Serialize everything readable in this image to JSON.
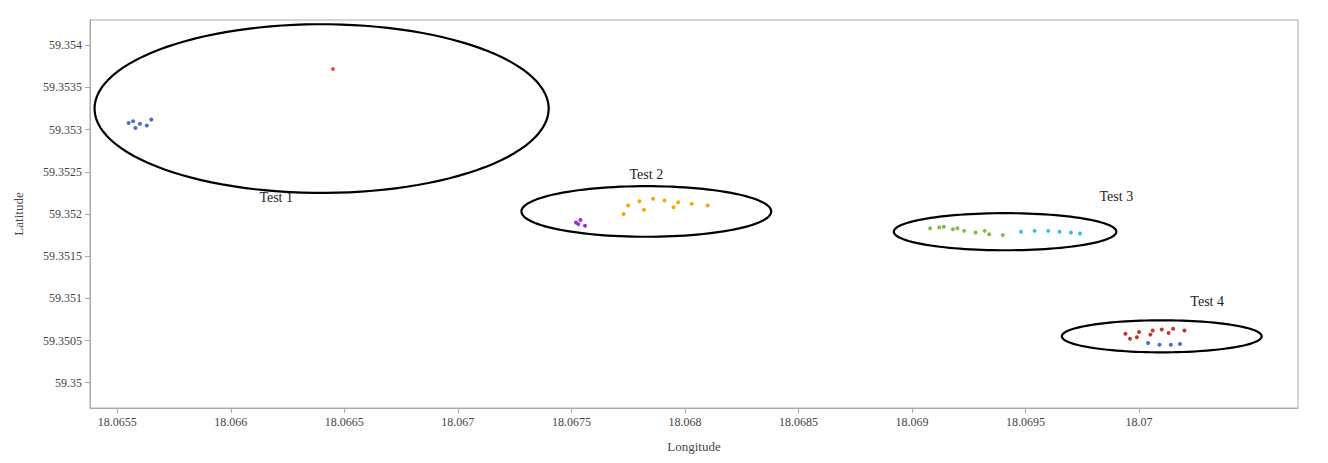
{
  "chart_data": {
    "type": "scatter",
    "xlabel": "Longitude",
    "ylabel": "Latitude",
    "xlim": [
      18.06538,
      18.0707
    ],
    "ylim": [
      59.3497,
      59.3543
    ],
    "xticks": [
      18.0655,
      18.066,
      18.0665,
      18.067,
      18.0675,
      18.068,
      18.0685,
      18.069,
      18.0695,
      18.07
    ],
    "yticks": [
      59.35,
      59.3505,
      59.351,
      59.3515,
      59.352,
      59.3525,
      59.353,
      59.3535,
      59.354
    ],
    "grid": false,
    "series": [
      {
        "color": "#4472C4",
        "values": [
          [
            18.06557,
            59.3531
          ],
          [
            18.0656,
            59.35307
          ],
          [
            18.06563,
            59.35305
          ],
          [
            18.06558,
            59.35302
          ],
          [
            18.06555,
            59.35308
          ],
          [
            18.06565,
            59.35312
          ]
        ]
      },
      {
        "color": "#E05A4E",
        "values": [
          [
            18.06645,
            59.35372
          ]
        ]
      },
      {
        "color": "#9932CC",
        "values": [
          [
            18.06754,
            59.35193
          ],
          [
            18.06752,
            59.3519
          ],
          [
            18.06756,
            59.35186
          ],
          [
            18.06753,
            59.35188
          ]
        ]
      },
      {
        "color": "#FFA500",
        "values": [
          [
            18.06775,
            59.3521
          ],
          [
            18.0678,
            59.35215
          ],
          [
            18.06786,
            59.35218
          ],
          [
            18.06791,
            59.35216
          ],
          [
            18.06797,
            59.35214
          ],
          [
            18.06803,
            59.35212
          ],
          [
            18.06795,
            59.35208
          ],
          [
            18.06782,
            59.35205
          ],
          [
            18.06773,
            59.352
          ],
          [
            18.0681,
            59.3521
          ]
        ]
      },
      {
        "color": "#7BBF44",
        "values": [
          [
            18.06912,
            59.35184
          ],
          [
            18.06918,
            59.35182
          ],
          [
            18.06923,
            59.3518
          ],
          [
            18.06928,
            59.35178
          ],
          [
            18.06934,
            59.35176
          ],
          [
            18.0694,
            59.35175
          ],
          [
            18.06932,
            59.3518
          ],
          [
            18.0692,
            59.35183
          ],
          [
            18.06908,
            59.35183
          ],
          [
            18.06914,
            59.35185
          ]
        ]
      },
      {
        "color": "#3BBFE0",
        "values": [
          [
            18.06948,
            59.35179
          ],
          [
            18.06954,
            59.3518
          ],
          [
            18.0696,
            59.3518
          ],
          [
            18.06965,
            59.35179
          ],
          [
            18.0697,
            59.35178
          ],
          [
            18.06974,
            59.35177
          ]
        ]
      },
      {
        "color": "#C0392B",
        "values": [
          [
            18.06994,
            59.35058
          ],
          [
            18.07,
            59.3506
          ],
          [
            18.07006,
            59.35062
          ],
          [
            18.0701,
            59.35063
          ],
          [
            18.07015,
            59.35064
          ],
          [
            18.0702,
            59.35062
          ],
          [
            18.07013,
            59.35059
          ],
          [
            18.07005,
            59.35057
          ],
          [
            18.06999,
            59.35054
          ],
          [
            18.06996,
            59.35052
          ]
        ]
      },
      {
        "color": "#4472C4",
        "values": [
          [
            18.07004,
            59.35047
          ],
          [
            18.07009,
            59.35045
          ],
          [
            18.07014,
            59.35045
          ],
          [
            18.07018,
            59.35046
          ]
        ]
      }
    ],
    "ellipses": [
      {
        "cx": 18.0664,
        "cy": 59.35325,
        "w": 0.002,
        "h": 0.002,
        "angle": 10
      },
      {
        "cx": 18.06783,
        "cy": 59.35203,
        "w": 0.0011,
        "h": 0.0006,
        "angle": 0
      },
      {
        "cx": 18.06941,
        "cy": 59.35179,
        "w": 0.00098,
        "h": 0.00044,
        "angle": 0
      },
      {
        "cx": 18.0701,
        "cy": 59.35055,
        "w": 0.00088,
        "h": 0.00038,
        "angle": 0
      }
    ],
    "annotations": [
      {
        "text": "Test 1",
        "x": 18.0662,
        "y": 59.3522
      },
      {
        "text": "Test 2",
        "x": 18.06783,
        "y": 59.35238
      },
      {
        "text": "Test 3",
        "x": 18.0699,
        "y": 59.35212
      },
      {
        "text": "Test 4",
        "x": 18.0703,
        "y": 59.35088
      }
    ]
  }
}
